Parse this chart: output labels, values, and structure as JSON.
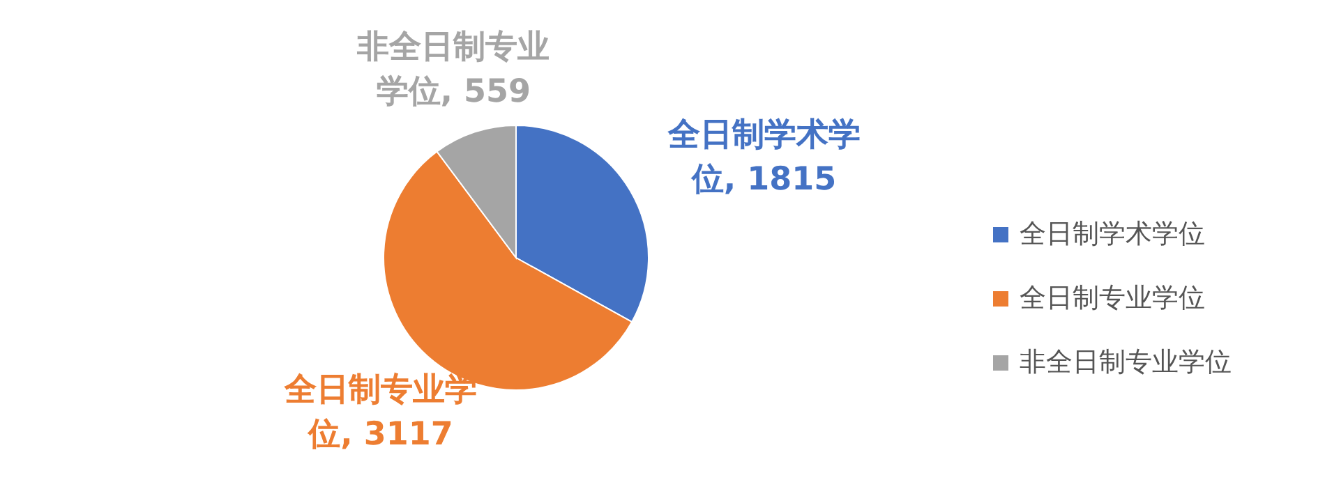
{
  "chart_data": {
    "type": "pie",
    "categories": [
      "全日制学术学位",
      "全日制专业学位",
      "非全日制专业学位"
    ],
    "values": [
      1815,
      3117,
      559
    ],
    "value_labels": [
      "全日制学术学位, 1815",
      "全日制专业学位, 3117",
      "非全日制专业学位, 559"
    ],
    "colors": [
      "#4472c4",
      "#ed7d31",
      "#a5a5a5"
    ],
    "legend": "right"
  }
}
